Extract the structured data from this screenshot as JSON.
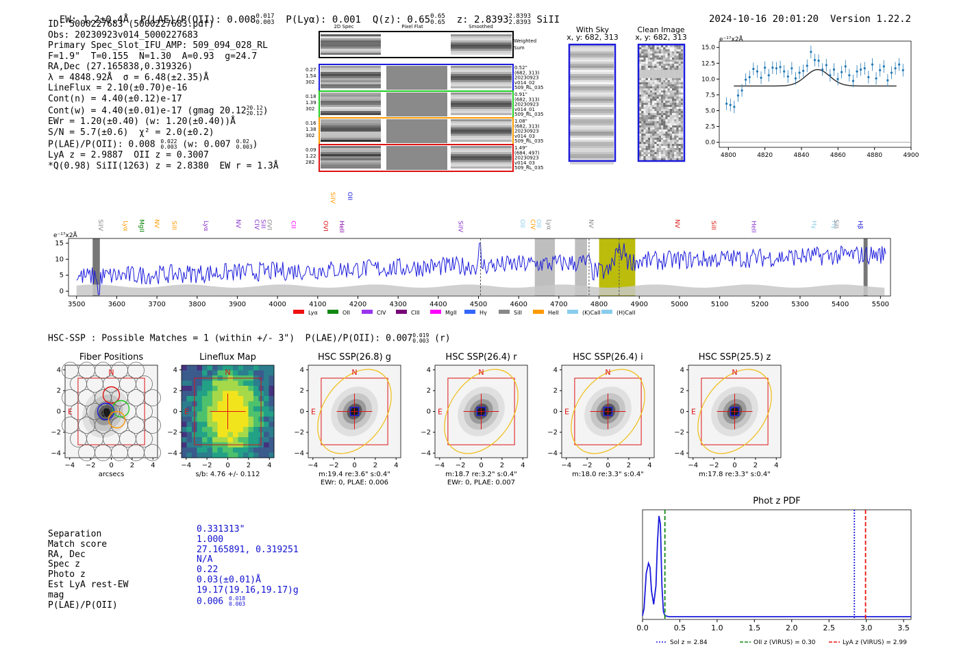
{
  "header": {
    "ew": "EW: 1.2±0.4Å",
    "plae": "P(LAE)/P(OII): 0.008",
    "plae_hi": "0.017",
    "plae_lo": "0.003",
    "plya": "P(Lyα): 0.001",
    "qz": "Q(z): 0.65",
    "qz_hi": "0.65",
    "qz_lo": "0.65",
    "z": "z: 2.8393",
    "z_hi": "2.8393",
    "z_lo": "2.8393",
    "line": "SiII",
    "timestamp": "2024-10-16 20:01:20",
    "version": "Version 1.22.2"
  },
  "info": {
    "lines": [
      "ID: 5000227683 (5000227683.pdf)",
      "Obs: 20230923v014_5000227683",
      "Primary Spec_Slot_IFU_AMP: 509_094_028_RL",
      "F=1.9\"  T=0.155  N=1.30  A=0.93  g=24.7",
      "RA,Dec (27.165838,0.319326)",
      "λ = 4848.92Å  σ = 6.48(±2.35)Å",
      "LineFlux = 2.10(±0.70)e-16",
      "Cont(n) = 4.40(±0.12)e-17"
    ],
    "cont_w": "Cont(w) = 4.40(±0.01)e-17 (gmag 20.12",
    "cont_w_hi": "20.12",
    "cont_w_lo": "20.12",
    "cont_w_end": ")",
    "ewr": "EWr = 1.20(±0.40) (w: 1.20(±0.40))Å",
    "sn": "S/N = 5.7(±0.6)  χ² = 2.0(±0.2)",
    "plae2": "P(LAE)/P(OII): 0.008",
    "plae2_hi": "0.022",
    "plae2_lo": "0.003",
    "plae2_w": " (w: 0.007",
    "plae2_w_hi": "0.02",
    "plae2_w_lo": "0.003",
    "plae2_end": ")",
    "lya": "LyA z = 2.9887  OII z = 0.3007",
    "q": "*Q(0.98) SiII(1263) z = 2.8380  EW r = 1.3Å"
  },
  "spec2d": {
    "col_headers": [
      "2D Spec",
      "Pixel Flat",
      "Smoothed"
    ],
    "weighted": "Weighted Sum",
    "rows": [
      {
        "left": [
          "0.27",
          "1.54",
          "302"
        ],
        "right": [
          "0.52\"",
          "(682, 313)",
          "20230923",
          "v014_02",
          "509_RL_035"
        ],
        "color": "#1a1adc"
      },
      {
        "left": [
          "0.18",
          "1.39",
          "302"
        ],
        "right": [
          "0.91\"",
          "(682, 313)",
          "20230923",
          "v014_01",
          "509_RL_035"
        ],
        "color": "#22cc22"
      },
      {
        "left": [
          "0.16",
          "1.38",
          "302"
        ],
        "right": [
          "1.08\"",
          "(682, 313)",
          "20230923",
          "v014_03",
          "509_RL_035"
        ],
        "color": "#ff9900"
      },
      {
        "left": [
          "0.09",
          "1.22",
          "282"
        ],
        "right": [
          "1.49\"",
          "(684, 497)",
          "20230923",
          "v014_03",
          "509_RL_035"
        ],
        "color": "#dd1111"
      }
    ]
  },
  "panels": {
    "with_sky": "With Sky",
    "with_sky_xy": "x, y: 682, 313",
    "clean": "Clean Image",
    "clean_xy": "x, y: 682, 313"
  },
  "line_fit": {
    "ylabel": "e⁻¹⁷x2Å",
    "yticks": [
      "0.0",
      "2.5",
      "5.0",
      "7.5",
      "10.0",
      "12.5",
      "15.0"
    ],
    "xticks": [
      "4800",
      "4820",
      "4840",
      "4860",
      "4880",
      "4900"
    ]
  },
  "spectrum": {
    "ylabel": "e⁻¹⁷x2Å",
    "yticks": [
      "0",
      "5",
      "10",
      "15"
    ],
    "xticks": [
      "3500",
      "3600",
      "3700",
      "3800",
      "3900",
      "4000",
      "4100",
      "4200",
      "4300",
      "4400",
      "4500",
      "4600",
      "4700",
      "4800",
      "4900",
      "5000",
      "5100",
      "5200",
      "5300",
      "5400",
      "5500"
    ],
    "lines": [
      {
        "label": "SiIV",
        "w": 3550,
        "color": "#888888",
        "row": 0
      },
      {
        "label": "Lyα",
        "w": 3612,
        "color": "#ff9900",
        "row": 1
      },
      {
        "label": "MgII",
        "w": 3652,
        "color": "#008000",
        "row": 0
      },
      {
        "label": "NV",
        "w": 3690,
        "color": "#ff9900",
        "row": 0
      },
      {
        "label": "SiII",
        "w": 3733,
        "color": "#ff9900",
        "row": 1
      },
      {
        "label": "Lyα",
        "w": 3812,
        "color": "#8833cc",
        "row": 1
      },
      {
        "label": "NV",
        "w": 3892,
        "color": "#8833cc",
        "row": 0
      },
      {
        "label": "CIV",
        "w": 3938,
        "color": "#8833cc",
        "row": 0
      },
      {
        "label": "SiII",
        "w": 3955,
        "color": "#8833cc",
        "row": 0
      },
      {
        "label": "OVI",
        "w": 3970,
        "color": "#888888",
        "row": 0
      },
      {
        "label": "CII",
        "w": 4030,
        "color": "#ff00ff",
        "row": 1
      },
      {
        "label": "OVI",
        "w": 4110,
        "color": "#dd1111",
        "row": 1
      },
      {
        "label": "HeII",
        "w": 4150,
        "color": "#8800aa",
        "row": 1
      },
      {
        "label": "SiIV",
        "w": 4128,
        "color": "#ff9900",
        "row": 2
      },
      {
        "label": "OII",
        "w": 4170,
        "color": "#1a1adc",
        "row": 2
      },
      {
        "label": "SiIV",
        "w": 4445,
        "color": "#8833cc",
        "row": 1
      },
      {
        "label": "OII",
        "w": 4600,
        "color": "#88ccee",
        "row": 0
      },
      {
        "label": "CIV",
        "w": 4625,
        "color": "#ff9900",
        "row": 0
      },
      {
        "label": "OII",
        "w": 4640,
        "color": "#88ccee",
        "row": 0
      },
      {
        "label": "Lyα",
        "w": 4665,
        "color": "#888888",
        "row": 0
      },
      {
        "label": "NV",
        "w": 4770,
        "color": "#888888",
        "row": 0
      },
      {
        "label": "NV",
        "w": 4985,
        "color": "#dd1111",
        "row": 0
      },
      {
        "label": "SiII",
        "w": 5075,
        "color": "#dd1111",
        "row": 1
      },
      {
        "label": "HeII",
        "w": 5175,
        "color": "#8833cc",
        "row": 1
      },
      {
        "label": "Hγ",
        "w": 5325,
        "color": "#88ccee",
        "row": 1
      },
      {
        "label": "Hγ",
        "w": 5375,
        "color": "#88ccee",
        "row": 1
      },
      {
        "label": "SiII",
        "w": 5380,
        "color": "#888888",
        "row": 0
      },
      {
        "label": "Hβ",
        "w": 5440,
        "color": "#1a1adc",
        "row": 1
      }
    ],
    "legend": [
      {
        "label": "Lyα",
        "color": "#ee1111"
      },
      {
        "label": "OII",
        "color": "#118811"
      },
      {
        "label": "CIV",
        "color": "#9933ee"
      },
      {
        "label": "CIII",
        "color": "#770077"
      },
      {
        "label": "MgII",
        "color": "#ff00ff"
      },
      {
        "label": "Hγ",
        "color": "#3366ff"
      },
      {
        "label": "SiII",
        "color": "#888888"
      },
      {
        "label": "HeII",
        "color": "#ff9900"
      },
      {
        "label": "(K)CaII",
        "color": "#88ccee"
      },
      {
        "label": "(H)CaII",
        "color": "#88ccee"
      }
    ]
  },
  "hsc": {
    "title": "HSC-SSP : Possible Matches = 1 (within +/- 3\")  P(LAE)/P(OII): 0.007",
    "title_hi": "0.019",
    "title_lo": "0.003",
    "title_end": "(r)",
    "cutouts": [
      {
        "title": "Fiber Positions",
        "cap1": "arcsecs",
        "cap2": ""
      },
      {
        "title": "Lineflux Map",
        "cap1": "s/b: 4.76 +/- 0.112",
        "cap2": ""
      },
      {
        "title": "HSC SSP(26.8) g",
        "cap1": "m:19.4  re:3.6\"  s:0.4\"",
        "cap2": "EWr: 0, PLAE: 0.006"
      },
      {
        "title": "HSC SSP(26.4) r",
        "cap1": "m:18.7  re:3.2\"  s:0.4\"",
        "cap2": "EWr: 0, PLAE: 0.007"
      },
      {
        "title": "HSC SSP(26.4) i",
        "cap1": "m:18.0  re:3.3\"  s:0.4\"",
        "cap2": ""
      },
      {
        "title": "HSC SSP(25.5) z",
        "cap1": "m:17.8  re:3.3\"  s:0.4\"",
        "cap2": ""
      }
    ],
    "ticks": [
      "4",
      "2",
      "0",
      "−2",
      "−4"
    ],
    "xticks": [
      "−4",
      "−2",
      "0",
      "2",
      "4"
    ],
    "n_label": "N",
    "e_label": "E"
  },
  "match": {
    "labels": [
      "Separation",
      "Match score",
      "RA, Dec",
      "Spec z",
      "Photo z",
      "Est LyA rest-EW",
      "mag",
      "P(LAE)/P(OII)"
    ],
    "values": [
      "0.331313\"",
      "1.000",
      "27.165891, 0.319251",
      "N/A",
      "0.22",
      "0.03(±0.01)Å",
      "19.17(19.16,19.17)g",
      "0.006"
    ],
    "plae_hi": "0.018",
    "plae_lo": "0.003"
  },
  "chart_data": {
    "type": "line",
    "title": "Phot z PDF",
    "xlabel": "",
    "ylabel": "",
    "xlim": [
      0.0,
      3.6
    ],
    "xticks": [
      "0.0",
      "0.5",
      "1.0",
      "1.5",
      "2.0",
      "2.5",
      "3.0",
      "3.5"
    ],
    "series": [
      {
        "name": "PDF",
        "x": [
          0.0,
          0.02,
          0.05,
          0.08,
          0.1,
          0.12,
          0.15,
          0.18,
          0.2,
          0.22,
          0.24,
          0.25,
          0.26,
          0.28,
          0.3,
          0.35,
          0.5,
          1.0,
          2.0,
          3.0,
          3.6
        ],
        "y": [
          0.01,
          0.08,
          0.42,
          0.52,
          0.48,
          0.25,
          0.12,
          0.3,
          0.72,
          0.98,
          0.9,
          0.6,
          0.3,
          0.05,
          0.01,
          0.0,
          0.0,
          0.0,
          0.0,
          0.0,
          0.0
        ]
      }
    ],
    "vlines": [
      {
        "name": "Sol z = 2.84",
        "x": 2.84,
        "color": "#1a1adc",
        "style": "dotted"
      },
      {
        "name": "OII z (VIRUS) = 0.30",
        "x": 0.3,
        "color": "#118811",
        "style": "dashed"
      },
      {
        "name": "LyA z (VIRUS) = 2.99",
        "x": 2.99,
        "color": "#ee1111",
        "style": "dashed"
      }
    ]
  }
}
